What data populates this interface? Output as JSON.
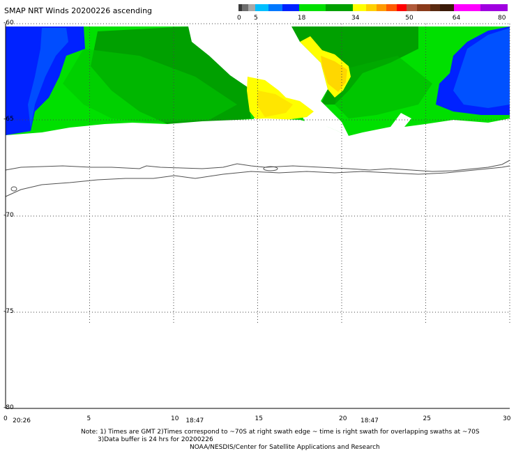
{
  "title": "SMAP NRT Winds 20200226 ascending",
  "legend": {
    "ticks": [
      "0",
      "5",
      "18",
      "34",
      "50",
      "64",
      "80"
    ],
    "tick_values": [
      0,
      5,
      18,
      34,
      50,
      64,
      80
    ],
    "colors": [
      {
        "from": 0,
        "to": 1,
        "color": "#3a3a3a"
      },
      {
        "from": 1,
        "to": 3,
        "color": "#6e6e6e"
      },
      {
        "from": 3,
        "to": 5,
        "color": "#a8a8a8"
      },
      {
        "from": 5,
        "to": 9,
        "color": "#00bfff"
      },
      {
        "from": 9,
        "to": 13,
        "color": "#0078ff"
      },
      {
        "from": 13,
        "to": 18,
        "color": "#0022ff"
      },
      {
        "from": 18,
        "to": 26,
        "color": "#00e000"
      },
      {
        "from": 26,
        "to": 34,
        "color": "#00a000"
      },
      {
        "from": 34,
        "to": 38,
        "color": "#ffff00"
      },
      {
        "from": 38,
        "to": 41,
        "color": "#ffd000"
      },
      {
        "from": 41,
        "to": 44,
        "color": "#ff9a00"
      },
      {
        "from": 44,
        "to": 47,
        "color": "#ff5a00"
      },
      {
        "from": 47,
        "to": 50,
        "color": "#ff0000"
      },
      {
        "from": 50,
        "to": 53,
        "color": "#b05a3a"
      },
      {
        "from": 53,
        "to": 57,
        "color": "#8a3a1a"
      },
      {
        "from": 57,
        "to": 60,
        "color": "#5a2a10"
      },
      {
        "from": 60,
        "to": 64,
        "color": "#3a1a08"
      },
      {
        "from": 64,
        "to": 72,
        "color": "#ff00ff"
      },
      {
        "from": 72,
        "to": 80,
        "color": "#a000e0"
      }
    ]
  },
  "map": {
    "lat_labels": [
      {
        "label": "-60",
        "value": -60
      },
      {
        "label": "-65",
        "value": -65
      },
      {
        "label": "-70",
        "value": -70
      },
      {
        "label": "-75",
        "value": -75
      },
      {
        "label": "-80",
        "value": -80
      }
    ],
    "lon_labels": [
      {
        "label": "0",
        "value": 0
      },
      {
        "label": "5",
        "value": 5
      },
      {
        "label": "10",
        "value": 10
      },
      {
        "label": "15",
        "value": 15
      },
      {
        "label": "20",
        "value": 20
      },
      {
        "label": "25",
        "value": 25
      },
      {
        "label": "30",
        "value": 30
      }
    ],
    "time_labels": [
      {
        "label": "20:26",
        "lon": 1.0
      },
      {
        "label": "18:47",
        "lon": 11.3
      },
      {
        "label": "18:47",
        "lon": 21.7
      }
    ],
    "lon_range": [
      0,
      30
    ],
    "lat_range": [
      -60,
      -80
    ],
    "grid": true,
    "colors": {
      "blue": "#0022ff",
      "blue_mid": "#0078ff",
      "green_light": "#00e000",
      "green_dark": "#00a000",
      "yellow": "#ffff00",
      "orange": "#ffd000",
      "coast": "#505050",
      "grid": "#444444"
    }
  },
  "notes": {
    "line1": "Note: 1) Times are GMT 2)Times correspond to ~70S at right swath edge ~ time is right swath for overlapping swaths at ~70S",
    "line2": "3)Data buffer is 24 hrs for 20200226",
    "line3": "NOAA/NESDIS/Center for Satellite Applications and Research"
  }
}
